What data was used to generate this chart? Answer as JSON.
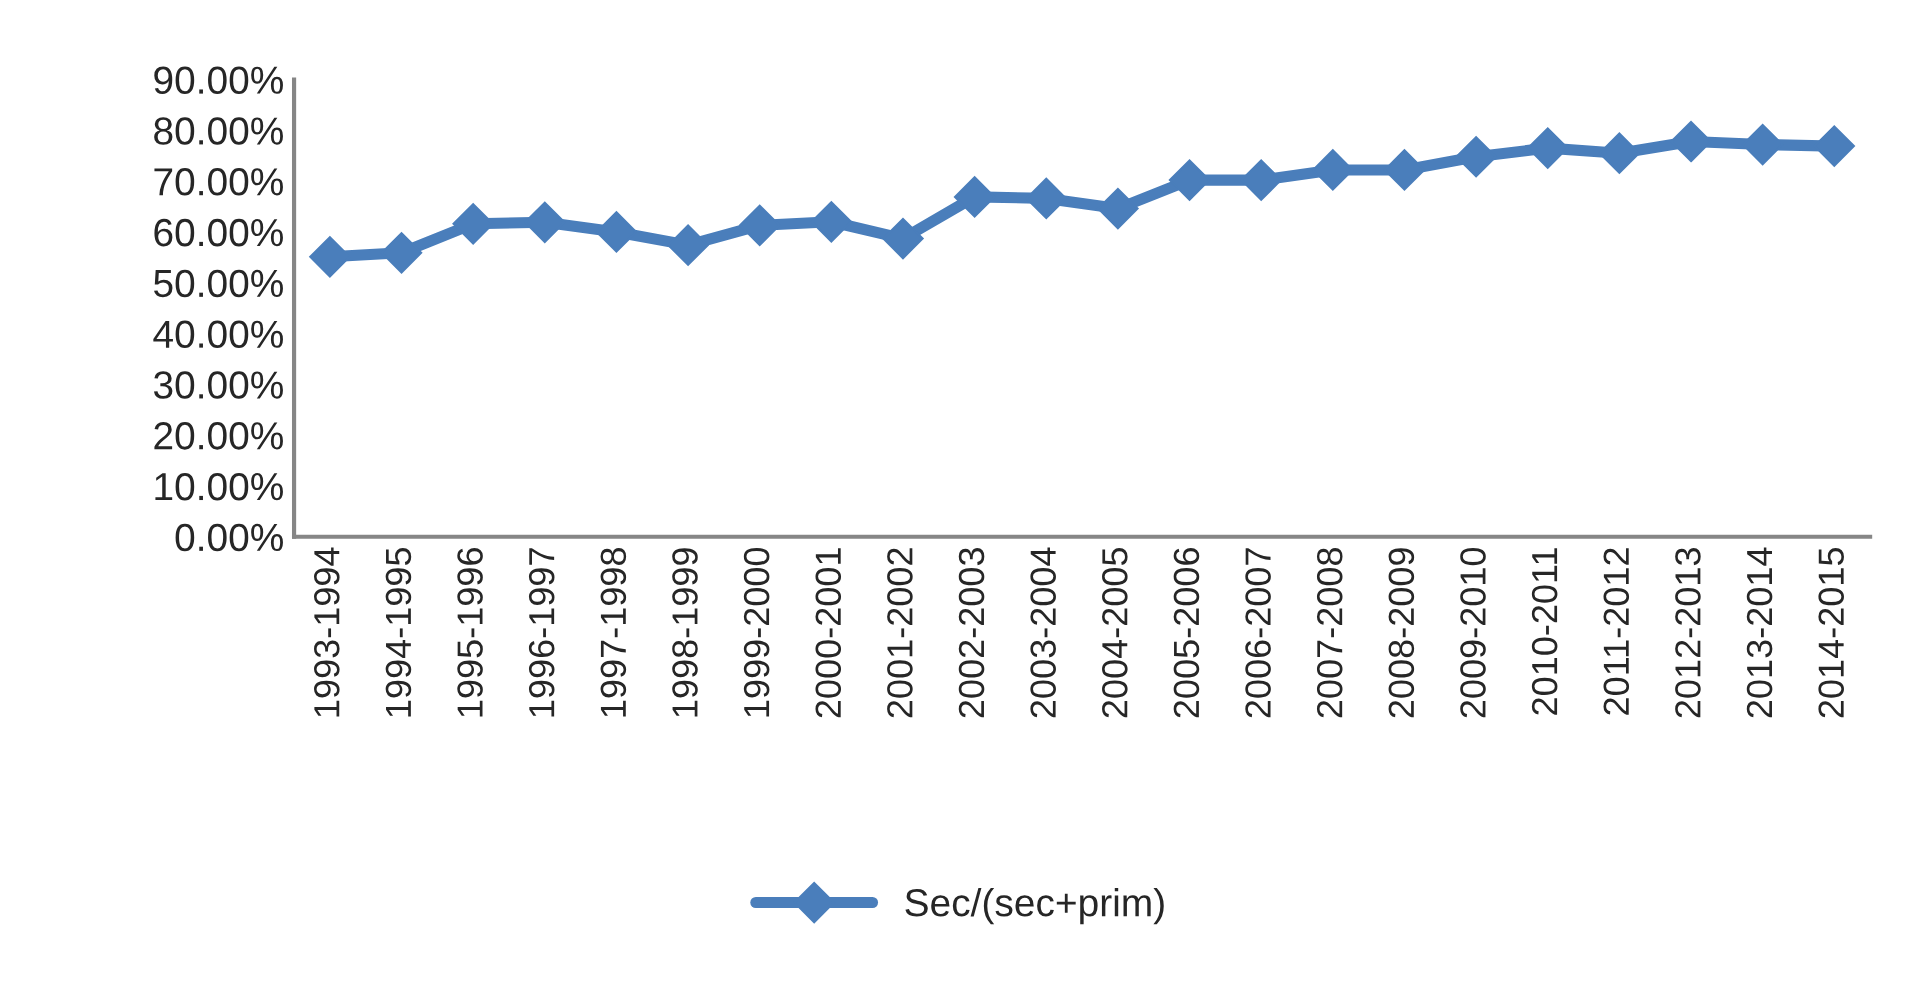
{
  "chart_data": {
    "type": "line",
    "categories": [
      "1993-1994",
      "1994-1995",
      "1995-1996",
      "1996-1997",
      "1997-1998",
      "1998-1999",
      "1999-2000",
      "2000-2001",
      "2001-2002",
      "2002-2003",
      "2003-2004",
      "2004-2005",
      "2005-2006",
      "2006-2007",
      "2007-2008",
      "2008-2009",
      "2009-2010",
      "2010-2011",
      "2011-2012",
      "2012-2013",
      "2013-2014",
      "2014-2015"
    ],
    "series": [
      {
        "name": "Sec/(sec+prim)",
        "color": "#4a7ebb",
        "values": [
          55.1,
          55.9,
          61.6,
          61.9,
          60.0,
          57.4,
          61.3,
          62.0,
          58.7,
          66.9,
          66.6,
          64.6,
          70.2,
          70.2,
          72.2,
          72.2,
          74.8,
          76.5,
          75.5,
          77.8,
          77.2,
          76.9
        ]
      }
    ],
    "ylim": [
      0,
      90
    ],
    "yticks": [
      {
        "value": 0,
        "label": "0.00%"
      },
      {
        "value": 10,
        "label": "10.00%"
      },
      {
        "value": 20,
        "label": "20.00%"
      },
      {
        "value": 30,
        "label": "30.00%"
      },
      {
        "value": 40,
        "label": "40.00%"
      },
      {
        "value": 50,
        "label": "50.00%"
      },
      {
        "value": 60,
        "label": "60.00%"
      },
      {
        "value": 70,
        "label": "70.00%"
      },
      {
        "value": 80,
        "label": "80.00%"
      },
      {
        "value": 90,
        "label": "90.00%"
      }
    ],
    "grid": false,
    "legend": "bottom",
    "marker": "diamond",
    "line_style": "solid"
  }
}
